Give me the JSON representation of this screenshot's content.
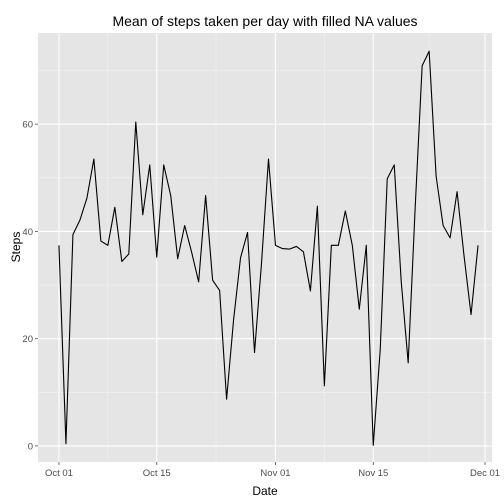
{
  "chart_data": {
    "type": "line",
    "title": "Mean of steps taken per day with filled NA values",
    "xlabel": "Date",
    "ylabel": "Steps",
    "xlim": [
      "2012-09-28",
      "2012-12-02"
    ],
    "ylim": [
      -3,
      77
    ],
    "x_ticks": [
      {
        "date": "2012-10-01",
        "label": "Oct 01"
      },
      {
        "date": "2012-10-15",
        "label": "Oct 15"
      },
      {
        "date": "2012-11-01",
        "label": "Nov 01"
      },
      {
        "date": "2012-11-15",
        "label": "Nov 15"
      },
      {
        "date": "2012-12-01",
        "label": "Dec 01"
      }
    ],
    "y_ticks": [
      0,
      20,
      40,
      60
    ],
    "grid": true,
    "legend": "none",
    "background_color": "#e5e5e5",
    "grid_color": "#ffffff",
    "line_color": "#000000",
    "series": [
      {
        "x": [
          "2012-10-01",
          "2012-10-02",
          "2012-10-03",
          "2012-10-04",
          "2012-10-05",
          "2012-10-06",
          "2012-10-07",
          "2012-10-08",
          "2012-10-09",
          "2012-10-10",
          "2012-10-11",
          "2012-10-12",
          "2012-10-13",
          "2012-10-14",
          "2012-10-15",
          "2012-10-16",
          "2012-10-17",
          "2012-10-18",
          "2012-10-19",
          "2012-10-20",
          "2012-10-21",
          "2012-10-22",
          "2012-10-23",
          "2012-10-24",
          "2012-10-25",
          "2012-10-26",
          "2012-10-27",
          "2012-10-28",
          "2012-10-29",
          "2012-10-30",
          "2012-10-31",
          "2012-11-01",
          "2012-11-02",
          "2012-11-03",
          "2012-11-04",
          "2012-11-05",
          "2012-11-06",
          "2012-11-07",
          "2012-11-08",
          "2012-11-09",
          "2012-11-10",
          "2012-11-11",
          "2012-11-12",
          "2012-11-13",
          "2012-11-14",
          "2012-11-15",
          "2012-11-16",
          "2012-11-17",
          "2012-11-18",
          "2012-11-19",
          "2012-11-20",
          "2012-11-21",
          "2012-11-22",
          "2012-11-23",
          "2012-11-24",
          "2012-11-25",
          "2012-11-26",
          "2012-11-27",
          "2012-11-28",
          "2012-11-29",
          "2012-11-30"
        ],
        "values": [
          37.4,
          0.4,
          39.4,
          42.1,
          46.2,
          53.5,
          38.2,
          37.4,
          44.5,
          34.4,
          35.8,
          60.4,
          43.1,
          52.4,
          35.2,
          52.4,
          46.7,
          34.9,
          41.1,
          36.1,
          30.6,
          46.7,
          30.9,
          29.0,
          8.7,
          23.5,
          35.1,
          39.8,
          17.4,
          34.1,
          53.5,
          37.4,
          36.8,
          36.7,
          37.2,
          36.2,
          28.9,
          44.7,
          11.2,
          37.4,
          37.4,
          43.8,
          37.4,
          25.5,
          37.4,
          0.1,
          18.0,
          49.8,
          52.4,
          30.7,
          15.5,
          44.4,
          70.9,
          73.6,
          50.3,
          41.1,
          38.8,
          47.4,
          35.4,
          24.5,
          37.4
        ]
      }
    ]
  }
}
